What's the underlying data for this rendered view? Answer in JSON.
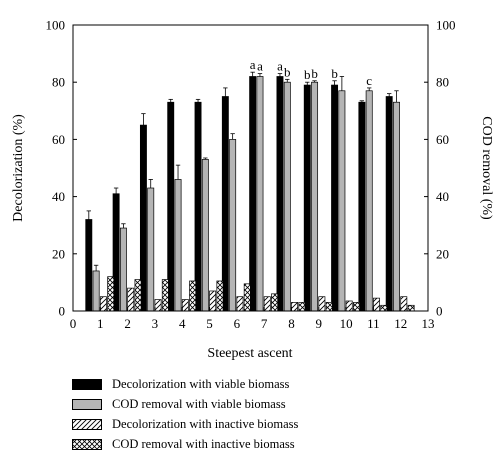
{
  "chart_data": {
    "type": "bar",
    "xlabel": "Steepest ascent",
    "ylabel_left": "Decolorization (%)",
    "ylabel_right": "COD removal (%)",
    "xlim": [
      0,
      13
    ],
    "ylim": [
      0,
      100
    ],
    "x_ticks": [
      "0",
      "1",
      "2",
      "3",
      "4",
      "5",
      "6",
      "7",
      "8",
      "9",
      "10",
      "11",
      "12",
      "13"
    ],
    "y_ticks": [
      "0",
      "20",
      "40",
      "60",
      "80",
      "100"
    ],
    "categories": [
      1,
      2,
      3,
      4,
      5,
      6,
      7,
      8,
      9,
      10,
      11,
      12
    ],
    "series": [
      {
        "name": "Decolorization with viable biomass",
        "fill": "solid-black",
        "values": [
          32,
          41,
          65,
          73,
          73,
          75,
          82,
          82,
          79,
          79,
          73,
          75
        ],
        "errors": [
          3,
          2,
          4,
          1,
          1,
          3,
          1.5,
          1,
          1,
          1.5,
          0.5,
          1
        ]
      },
      {
        "name": "COD removal with viable biomass",
        "fill": "solid-gray",
        "values": [
          14,
          29,
          43,
          46,
          53,
          60,
          82,
          80,
          80,
          77,
          77,
          73
        ],
        "errors": [
          2,
          1.5,
          3,
          5,
          0.5,
          2,
          1,
          1,
          0.5,
          5,
          1,
          4
        ]
      },
      {
        "name": "Decolorization with inactive biomass",
        "fill": "diagonal-hatch",
        "values": [
          5,
          8,
          4,
          4,
          7,
          5,
          5,
          3,
          5,
          3.5,
          4.5,
          5
        ],
        "errors": [
          0,
          0,
          0,
          0,
          0,
          0,
          0,
          0,
          0,
          0,
          0,
          0
        ]
      },
      {
        "name": "COD removal with inactive biomass",
        "fill": "cross-hatch",
        "values": [
          12,
          11,
          11,
          10.5,
          10.5,
          9.5,
          6,
          3,
          3,
          3,
          2,
          2
        ],
        "errors": [
          0,
          0,
          0,
          0,
          0,
          0,
          0,
          0,
          0,
          0,
          0,
          0
        ]
      }
    ],
    "annotations": [
      {
        "x": 7,
        "series": 0,
        "text": "a"
      },
      {
        "x": 7,
        "series": 1,
        "text": "a"
      },
      {
        "x": 8,
        "series": 0,
        "text": "a"
      },
      {
        "x": 8,
        "series": 1,
        "text": "b"
      },
      {
        "x": 9,
        "series": 0,
        "text": "b"
      },
      {
        "x": 9,
        "series": 1,
        "text": "b"
      },
      {
        "x": 10,
        "series": 0,
        "text": "b"
      },
      {
        "x": 11,
        "series": 1,
        "text": "c"
      }
    ],
    "legend_position": "bottom",
    "grid": false
  }
}
